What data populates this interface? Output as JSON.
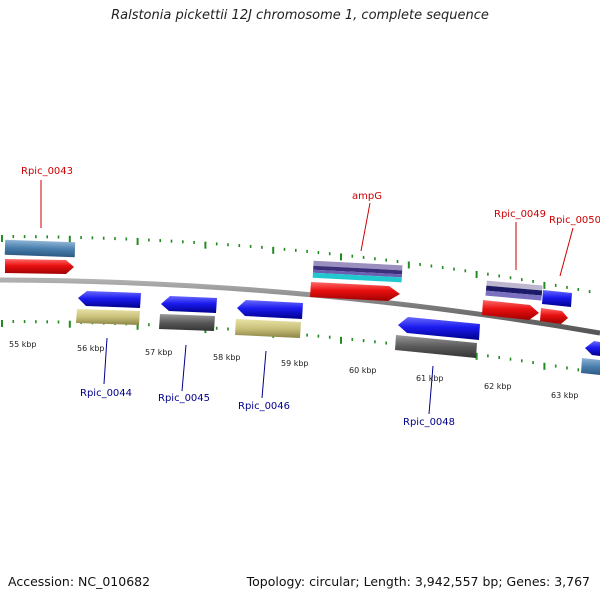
{
  "header": {
    "title": "Ralstonia pickettii 12J chromosome 1, complete sequence"
  },
  "footer": {
    "accession": "Accession: NC_010682",
    "summary": "Topology: circular; Length: 3,942,557 bp; Genes: 3,767"
  },
  "colors": {
    "backbone": "#7a7a7a",
    "tick": "#228b22",
    "label_forward": "#cc0000",
    "label_reverse": "#00008b",
    "cds_forward": "#e81010",
    "cds_reverse": "#1a1aee",
    "gene_blue_gray": "#4a7fae",
    "gene_khaki": "#bdb76b",
    "gene_gray": "#5a5a5a"
  },
  "scale": {
    "kbp_labels": [
      "55 kbp",
      "56 kbp",
      "57 kbp",
      "58 kbp",
      "59 kbp",
      "60 kbp",
      "61 kbp",
      "62 kbp",
      "63 kbp"
    ]
  },
  "genes": {
    "forward": [
      "Rpic_0043",
      "ampG",
      "Rpic_0049",
      "Rpic_0050"
    ],
    "reverse": [
      "Rpic_0044",
      "Rpic_0045",
      "Rpic_0046",
      "Rpic_0048"
    ]
  }
}
